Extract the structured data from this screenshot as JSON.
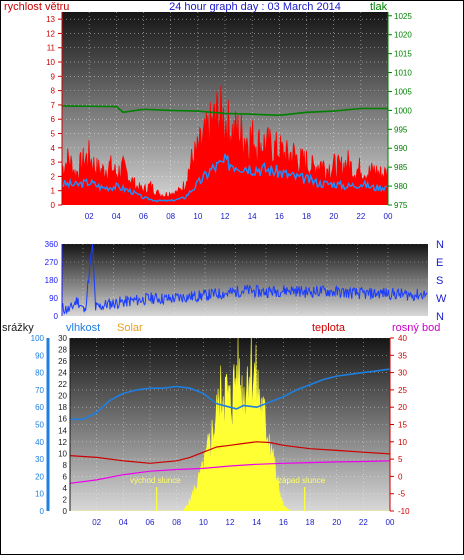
{
  "header": {
    "left_label": "rychlost větru",
    "title": "24 hour graph day : 03 March 2014",
    "right_label": "tlak"
  },
  "labels": {
    "srazky": "srážky",
    "vlhkost": "vlhkost",
    "solar": "Solar",
    "teplota": "teplota",
    "rosny_bod": "rosný bod",
    "vychod": "východ slunce",
    "zapad": "západ slunce"
  },
  "colors": {
    "wind": "#ff0000",
    "wind_avg": "#1e90ff",
    "pressure": "#008000",
    "direction": "#1a3cff",
    "humidity": "#1e7fe0",
    "temp": "#cc0000",
    "dew": "#ee00ee",
    "solar": "#ffff33",
    "axis_red": "#cc0000",
    "axis_green": "#008000",
    "axis_blue": "#1a1aff",
    "axis_solar": "#e8a020",
    "axis_magenta": "#cc00cc"
  },
  "chart_data": [
    {
      "type": "line",
      "name": "wind-pressure",
      "x_ticks": [
        "02",
        "04",
        "06",
        "08",
        "10",
        "12",
        "14",
        "16",
        "18",
        "20",
        "22",
        "00"
      ],
      "y_left_ticks": [
        "0",
        "1",
        "2",
        "3",
        "4",
        "5",
        "6",
        "7",
        "8",
        "9",
        "10",
        "11",
        "12",
        "13"
      ],
      "y_right_ticks": [
        "975",
        "980",
        "985",
        "990",
        "995",
        "1000",
        "1005",
        "1010",
        "1015",
        "1020",
        "1025"
      ],
      "y_left_range": [
        0,
        13.5
      ],
      "y_right_range": [
        975,
        1026
      ],
      "x_range": [
        0,
        24
      ],
      "wind_gust": [
        [
          0,
          3
        ],
        [
          0.5,
          3.8
        ],
        [
          1,
          2.5
        ],
        [
          1.5,
          3.5
        ],
        [
          2,
          4
        ],
        [
          2.5,
          3
        ],
        [
          3,
          2.8
        ],
        [
          3.5,
          3.2
        ],
        [
          4,
          2.6
        ],
        [
          4.5,
          3
        ],
        [
          5,
          2.2
        ],
        [
          5.5,
          1.5
        ],
        [
          6,
          1.2
        ],
        [
          6.5,
          1.6
        ],
        [
          7,
          1
        ],
        [
          7.5,
          0.8
        ],
        [
          8,
          1
        ],
        [
          8.5,
          1
        ],
        [
          9,
          1.6
        ],
        [
          9.5,
          3.5
        ],
        [
          10,
          4.5
        ],
        [
          10.5,
          5.5
        ],
        [
          11,
          6.5
        ],
        [
          11.5,
          7.5
        ],
        [
          12,
          7
        ],
        [
          12.5,
          6
        ],
        [
          13,
          6
        ],
        [
          13.5,
          5.5
        ],
        [
          14,
          5.5
        ],
        [
          14.5,
          5
        ],
        [
          15,
          5
        ],
        [
          15.5,
          4.6
        ],
        [
          16,
          4.5
        ],
        [
          16.5,
          4
        ],
        [
          17,
          4.2
        ],
        [
          17.5,
          3.6
        ],
        [
          18,
          3.5
        ],
        [
          18.5,
          3
        ],
        [
          19,
          3.5
        ],
        [
          19.5,
          3
        ],
        [
          20,
          3.2
        ],
        [
          20.5,
          3
        ],
        [
          21,
          3.5
        ],
        [
          21.5,
          2.8
        ],
        [
          22,
          3
        ],
        [
          22.5,
          2.6
        ],
        [
          23,
          2.8
        ],
        [
          23.5,
          2.5
        ],
        [
          24,
          2.6
        ]
      ],
      "wind_avg": [
        [
          0,
          1.5
        ],
        [
          1,
          1.4
        ],
        [
          2,
          1.6
        ],
        [
          3,
          1.2
        ],
        [
          4,
          1.3
        ],
        [
          5,
          1
        ],
        [
          6,
          0.5
        ],
        [
          7,
          0.3
        ],
        [
          8,
          0.3
        ],
        [
          9,
          0.5
        ],
        [
          10,
          1.5
        ],
        [
          11,
          2.5
        ],
        [
          12,
          3
        ],
        [
          13,
          2.8
        ],
        [
          14,
          2.6
        ],
        [
          15,
          2.5
        ],
        [
          16,
          2.3
        ],
        [
          17,
          2
        ],
        [
          18,
          1.8
        ],
        [
          19,
          1.5
        ],
        [
          20,
          1.5
        ],
        [
          21,
          1.3
        ],
        [
          22,
          1.5
        ],
        [
          23,
          1.2
        ],
        [
          24,
          1.3
        ]
      ],
      "pressure": [
        [
          0,
          1001.2
        ],
        [
          4,
          1001
        ],
        [
          4.5,
          999.5
        ],
        [
          6,
          1000.3
        ],
        [
          8,
          1000
        ],
        [
          10,
          999.8
        ],
        [
          12,
          999.2
        ],
        [
          14,
          999
        ],
        [
          16,
          998.7
        ],
        [
          18,
          999.5
        ],
        [
          20,
          999.8
        ],
        [
          22,
          1000.5
        ],
        [
          24,
          1000.5
        ]
      ]
    },
    {
      "type": "scatter",
      "name": "wind-direction",
      "y_left_ticks": [
        "0",
        "90",
        "180",
        "270",
        "360"
      ],
      "y_right_ticks": [
        "N",
        "W",
        "S",
        "E",
        "N"
      ],
      "y_range": [
        0,
        360
      ],
      "x_range": [
        0,
        24
      ],
      "direction": [
        [
          0,
          40
        ],
        [
          0.5,
          30
        ],
        [
          1,
          80
        ],
        [
          1.5,
          20
        ],
        [
          2,
          360
        ],
        [
          2.2,
          40
        ],
        [
          3,
          60
        ],
        [
          4,
          70
        ],
        [
          5,
          80
        ],
        [
          6,
          90
        ],
        [
          7,
          85
        ],
        [
          8,
          95
        ],
        [
          9,
          100
        ],
        [
          10,
          110
        ],
        [
          11,
          115
        ],
        [
          12,
          130
        ],
        [
          13,
          120
        ],
        [
          14,
          125
        ],
        [
          15,
          130
        ],
        [
          16,
          120
        ],
        [
          17,
          125
        ],
        [
          18,
          120
        ],
        [
          19,
          115
        ],
        [
          20,
          110
        ],
        [
          21,
          115
        ],
        [
          22,
          110
        ],
        [
          23,
          105
        ],
        [
          24,
          110
        ]
      ]
    },
    {
      "type": "line",
      "name": "rain-humidity-solar-temp",
      "x_ticks": [
        "02",
        "04",
        "06",
        "08",
        "10",
        "12",
        "14",
        "16",
        "18",
        "20",
        "22",
        "00"
      ],
      "y_rain_ticks": [
        "0",
        "2",
        "4",
        "6",
        "8",
        "10",
        "12",
        "14",
        "16",
        "18",
        "20",
        "22",
        "24",
        "26",
        "28",
        "30"
      ],
      "y_hum_ticks": [
        "0",
        "10",
        "20",
        "30",
        "40",
        "50",
        "60",
        "70",
        "80",
        "90",
        "100"
      ],
      "y_temp_ticks": [
        "-10",
        "-5",
        "0",
        "5",
        "10",
        "15",
        "20",
        "25",
        "30",
        "35",
        "40"
      ],
      "hum_range": [
        0,
        100
      ],
      "temp_range": [
        -10,
        40
      ],
      "x_range": [
        0,
        24
      ],
      "humidity": [
        [
          0,
          53
        ],
        [
          1,
          53
        ],
        [
          2,
          57
        ],
        [
          3,
          64
        ],
        [
          4,
          68
        ],
        [
          5,
          70
        ],
        [
          6,
          71
        ],
        [
          7,
          71
        ],
        [
          8,
          72
        ],
        [
          9,
          71
        ],
        [
          10,
          68
        ],
        [
          11,
          62
        ],
        [
          12,
          60
        ],
        [
          12.5,
          59
        ],
        [
          13,
          61
        ],
        [
          14,
          60
        ],
        [
          15,
          63
        ],
        [
          16,
          66
        ],
        [
          17,
          70
        ],
        [
          18,
          73
        ],
        [
          19,
          76
        ],
        [
          20,
          78
        ],
        [
          21,
          79
        ],
        [
          22,
          80
        ],
        [
          23,
          81
        ],
        [
          24,
          82
        ]
      ],
      "temperature": [
        [
          0,
          6
        ],
        [
          2,
          5.5
        ],
        [
          4,
          4.5
        ],
        [
          6,
          3.8
        ],
        [
          8,
          4.5
        ],
        [
          9,
          5.5
        ],
        [
          10,
          7
        ],
        [
          11,
          8.5
        ],
        [
          12,
          9
        ],
        [
          13,
          9.5
        ],
        [
          14,
          10
        ],
        [
          15,
          9.8
        ],
        [
          16,
          9
        ],
        [
          18,
          8
        ],
        [
          20,
          7.5
        ],
        [
          22,
          7
        ],
        [
          24,
          6.5
        ]
      ],
      "dewpoint": [
        [
          0,
          -2
        ],
        [
          2,
          -1
        ],
        [
          4,
          0.5
        ],
        [
          6,
          1.5
        ],
        [
          8,
          2
        ],
        [
          10,
          2.3
        ],
        [
          12,
          3
        ],
        [
          14,
          3.5
        ],
        [
          16,
          3.8
        ],
        [
          18,
          4
        ],
        [
          20,
          4.2
        ],
        [
          22,
          4.3
        ],
        [
          24,
          4.5
        ]
      ],
      "solar": [
        [
          0,
          0
        ],
        [
          8.5,
          0
        ],
        [
          9,
          2
        ],
        [
          10,
          8
        ],
        [
          11,
          18
        ],
        [
          11.5,
          24
        ],
        [
          12,
          20
        ],
        [
          12.5,
          26
        ],
        [
          13,
          22
        ],
        [
          13.5,
          28
        ],
        [
          14,
          24
        ],
        [
          14.5,
          18
        ],
        [
          15,
          14
        ],
        [
          15.5,
          6
        ],
        [
          16,
          1
        ],
        [
          16.5,
          0
        ],
        [
          24,
          0
        ]
      ],
      "sunrise_hour": 6.5,
      "sunset_hour": 17.6
    }
  ]
}
